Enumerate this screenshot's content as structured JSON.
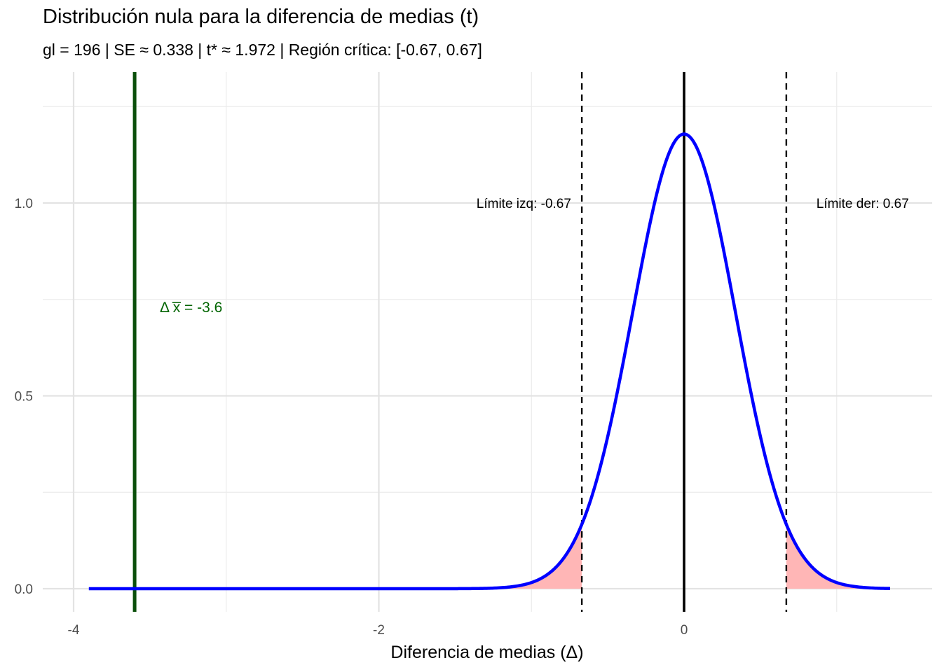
{
  "chart_data": {
    "type": "line",
    "title": "Distribución nula para la diferencia de medias (t)",
    "subtitle": "gl = 196 | SE ≈ 0.338 | t* ≈ 1.972 | Región crítica: [-0.67, 0.67]",
    "xlabel": "Diferencia de medias (Δ)",
    "ylabel": "",
    "xlim": [
      -4.0,
      1.6
    ],
    "ylim": [
      -0.06,
      1.26
    ],
    "grid": true,
    "x_ticks": [
      -4,
      -2,
      0
    ],
    "x_tick_labels": [
      "-4",
      "-2",
      "0"
    ],
    "y_ticks": [
      0.0,
      0.5,
      1.0
    ],
    "y_tick_labels": [
      "0.0",
      "0.5",
      "1.0"
    ],
    "series": [
      {
        "kind": "density",
        "distribution": "t",
        "df": 196,
        "scale": 0.338,
        "x_range": [
          -3.9,
          1.35
        ],
        "color": "#0000FF"
      }
    ],
    "critical_region": {
      "lower": -0.67,
      "upper": 0.67,
      "fill": "#FFB6B6"
    },
    "lines": [
      {
        "x": 0,
        "style": "solid",
        "color": "#000000"
      },
      {
        "x": -0.67,
        "style": "dashed",
        "color": "#000000"
      },
      {
        "x": 0.67,
        "style": "dashed",
        "color": "#000000"
      },
      {
        "x": -3.6,
        "style": "solid",
        "color": "#0B4F0B"
      }
    ],
    "annotations": [
      {
        "text": "Límite izq: -0.67",
        "x": -1.05,
        "y": 1.0,
        "color": "#000000"
      },
      {
        "text": "Límite der: 0.67",
        "x": 1.17,
        "y": 1.0,
        "color": "#000000"
      },
      {
        "text": "Δ  x̅ = -3.6",
        "x": -3.23,
        "y": 0.73,
        "color": "#006400"
      }
    ]
  }
}
